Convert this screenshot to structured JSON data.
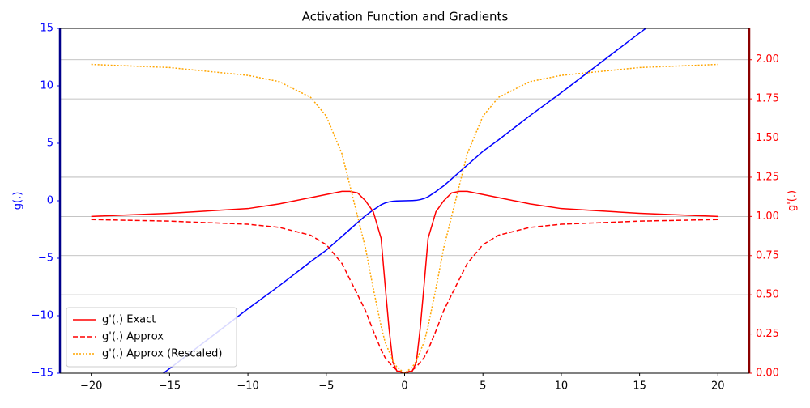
{
  "chart_data": {
    "type": "line",
    "title": "Activation Function and Gradients",
    "ylabel": "g(.)",
    "y2label": "g'(.)",
    "x": [
      -20,
      -15,
      -10,
      -8,
      -6,
      -5,
      -4,
      -3.5,
      -3,
      -2.5,
      -2,
      -1.5,
      -1.25,
      -1,
      -0.75,
      -0.5,
      0,
      0.5,
      0.75,
      1,
      1.25,
      1.5,
      2,
      2.5,
      3,
      3.5,
      4,
      5,
      6,
      8,
      10,
      15,
      20
    ],
    "xlim": [
      -22,
      22
    ],
    "xticks": [
      {
        "value": -20,
        "label": "−20"
      },
      {
        "value": -15,
        "label": "−15"
      },
      {
        "value": -10,
        "label": "−10"
      },
      {
        "value": -5,
        "label": "−5"
      },
      0,
      5,
      10,
      15,
      20
    ],
    "ylim": [
      -15,
      15
    ],
    "yticks": [
      {
        "value": -15,
        "label": "−15"
      },
      {
        "value": -10,
        "label": "−10"
      },
      {
        "value": -5,
        "label": "−5"
      },
      0,
      5,
      10,
      15
    ],
    "y2lim": [
      0,
      2.2
    ],
    "y2ticks": [
      {
        "value": 0,
        "label": "0.00"
      },
      0.25,
      {
        "value": 0.5,
        "label": "0.50"
      },
      0.75,
      {
        "value": 1,
        "label": "1.00"
      },
      1.25,
      {
        "value": 1.5,
        "label": "1.50"
      },
      1.75,
      {
        "value": 2,
        "label": "2.00"
      }
    ],
    "grid": true,
    "legend": "lower left",
    "series": [
      {
        "color": "#0000ff",
        "linestyle": "solid",
        "values": [
          -19.6,
          -14.6,
          -9.4,
          -7.4,
          -5.3,
          -4.3,
          -3.1,
          -2.5,
          -1.9,
          -1.3,
          -0.8,
          -0.35,
          -0.2,
          -0.1,
          -0.04,
          -0.02,
          0,
          0.02,
          0.04,
          0.1,
          0.2,
          0.35,
          0.8,
          1.3,
          1.9,
          2.5,
          3.1,
          4.3,
          5.3,
          7.4,
          9.4,
          14.6,
          19.6
        ]
      },
      {
        "name": "g'(.) Exact",
        "color": "#ff0000",
        "linestyle": "solid",
        "axis": "y2",
        "values": [
          1.0,
          1.02,
          1.05,
          1.08,
          1.12,
          1.14,
          1.16,
          1.16,
          1.15,
          1.1,
          1.03,
          0.86,
          0.57,
          0.29,
          0.07,
          0.015,
          0,
          0.015,
          0.07,
          0.29,
          0.57,
          0.86,
          1.03,
          1.1,
          1.15,
          1.16,
          1.16,
          1.14,
          1.12,
          1.08,
          1.05,
          1.02,
          1.0
        ]
      },
      {
        "name": "g'(.) Approx",
        "color": "#ff0000",
        "linestyle": "dashed",
        "axis": "y2",
        "values": [
          0.98,
          0.97,
          0.95,
          0.93,
          0.88,
          0.82,
          0.7,
          0.6,
          0.5,
          0.4,
          0.27,
          0.15,
          0.1,
          0.07,
          0.04,
          0.02,
          0,
          0.02,
          0.04,
          0.07,
          0.1,
          0.15,
          0.27,
          0.4,
          0.5,
          0.6,
          0.7,
          0.82,
          0.88,
          0.93,
          0.95,
          0.97,
          0.98
        ]
      },
      {
        "name": "g'(.) Approx (Rescaled)",
        "color": "#ffa500",
        "linestyle": "dotted",
        "axis": "y2",
        "values": [
          1.97,
          1.95,
          1.9,
          1.86,
          1.76,
          1.64,
          1.4,
          1.2,
          1.0,
          0.8,
          0.54,
          0.3,
          0.2,
          0.14,
          0.08,
          0.04,
          0,
          0.04,
          0.08,
          0.14,
          0.2,
          0.3,
          0.54,
          0.8,
          1.0,
          1.2,
          1.4,
          1.64,
          1.76,
          1.86,
          1.9,
          1.95,
          1.97
        ]
      }
    ]
  }
}
